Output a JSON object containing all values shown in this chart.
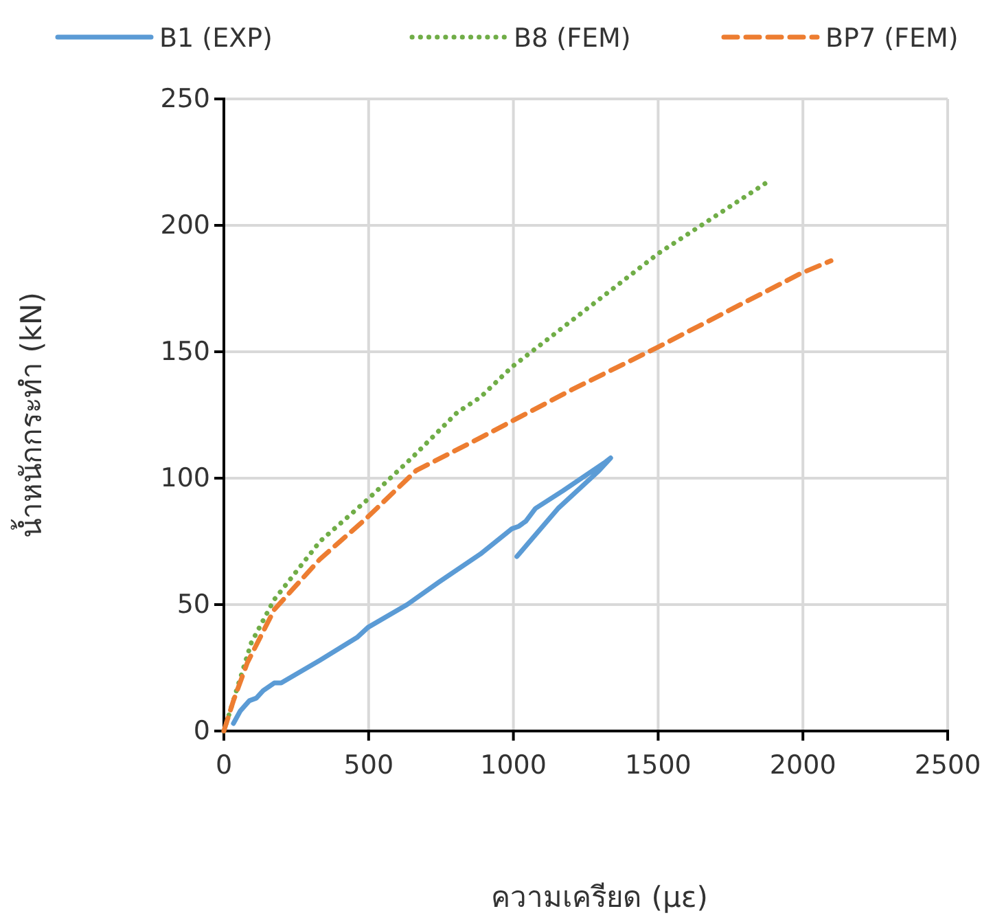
{
  "chart_data": {
    "type": "line",
    "xlabel": "ความเครียด (με)",
    "ylabel": "น้ำหนักกระทำ (kN)",
    "xlim": [
      0,
      2500
    ],
    "xticks": [
      0,
      500,
      1000,
      1500,
      2000,
      2500
    ],
    "ylim": [
      0,
      250
    ],
    "yticks": [
      0,
      50,
      100,
      150,
      200,
      250
    ],
    "grid": true,
    "legend": "top",
    "marker": "none",
    "series": [
      {
        "name": "B1 (EXP)",
        "color": "#5b9bd5",
        "line_style": "solid",
        "x": [
          33,
          57,
          88,
          112,
          136,
          174,
          198,
          332,
          460,
          498,
          633,
          744,
          886,
          995,
          1019,
          1043,
          1076,
          1171,
          1313,
          1336,
          1296,
          1154,
          1012
        ],
        "values": [
          3,
          8,
          12,
          13,
          16,
          19,
          19,
          28,
          37,
          41,
          50,
          59,
          70,
          80,
          81,
          83,
          88,
          95,
          106,
          108,
          103,
          88,
          69
        ]
      },
      {
        "name": "B8 (FEM)",
        "color": "#70ad47",
        "line_style": "dotted",
        "x": [
          0,
          57,
          95,
          174,
          332,
          491,
          649,
          806,
          886,
          995,
          1502,
          1889
        ],
        "values": [
          0,
          21,
          35,
          52,
          75,
          91,
          108,
          126,
          132,
          144,
          189,
          218
        ]
      },
      {
        "name": "BP7 (FEM)",
        "color": "#ed7d31",
        "line_style": "dashed",
        "x": [
          0,
          33,
          81,
          174,
          332,
          491,
          664,
          886,
          1202,
          1502,
          1993,
          2097
        ],
        "values": [
          0,
          12,
          27,
          48,
          68,
          84,
          103,
          116,
          135,
          152,
          181,
          186
        ]
      }
    ]
  }
}
